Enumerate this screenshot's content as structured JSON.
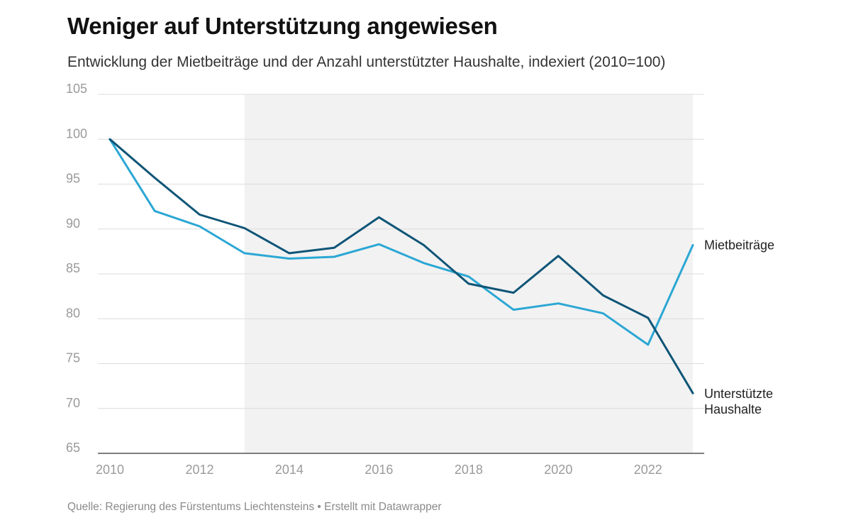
{
  "title": "Weniger auf Unterstützung angewiesen",
  "subtitle": "Entwicklung der Mietbeiträge und der Anzahl unterstützter Haushalte, indexiert (2010=100)",
  "source": "Quelle: Regierung des Fürstentums Liechtensteins • Erstellt mit Datawrapper",
  "chart_data": {
    "type": "line",
    "x": [
      2010,
      2011,
      2012,
      2013,
      2014,
      2015,
      2016,
      2017,
      2018,
      2019,
      2020,
      2021,
      2022,
      2023
    ],
    "xlim": [
      2010,
      2023
    ],
    "x_ticks": [
      "2010",
      "2012",
      "2014",
      "2016",
      "2018",
      "2020",
      "2022"
    ],
    "ylim": [
      65,
      105
    ],
    "y_ticks": [
      "105",
      "100",
      "95",
      "90",
      "85",
      "80",
      "75",
      "70",
      "65"
    ],
    "grid": true,
    "highlight_range": [
      2013,
      2023
    ],
    "series": [
      {
        "name": "Mietbeiträge",
        "color": "#2ba7d4",
        "values": [
          100,
          92,
          90.3,
          87.3,
          86.7,
          86.9,
          88.3,
          86.2,
          84.7,
          81,
          81.7,
          80.6,
          77.1,
          88.2
        ]
      },
      {
        "name": "Unterstützte Haushalte",
        "label_lines": [
          "Unterstützte",
          "Haushalte"
        ],
        "color": "#0f5577",
        "values": [
          100,
          95.7,
          91.6,
          90.1,
          87.3,
          87.9,
          91.3,
          88.2,
          83.9,
          82.9,
          87,
          82.6,
          80.1,
          71.7
        ]
      }
    ]
  }
}
